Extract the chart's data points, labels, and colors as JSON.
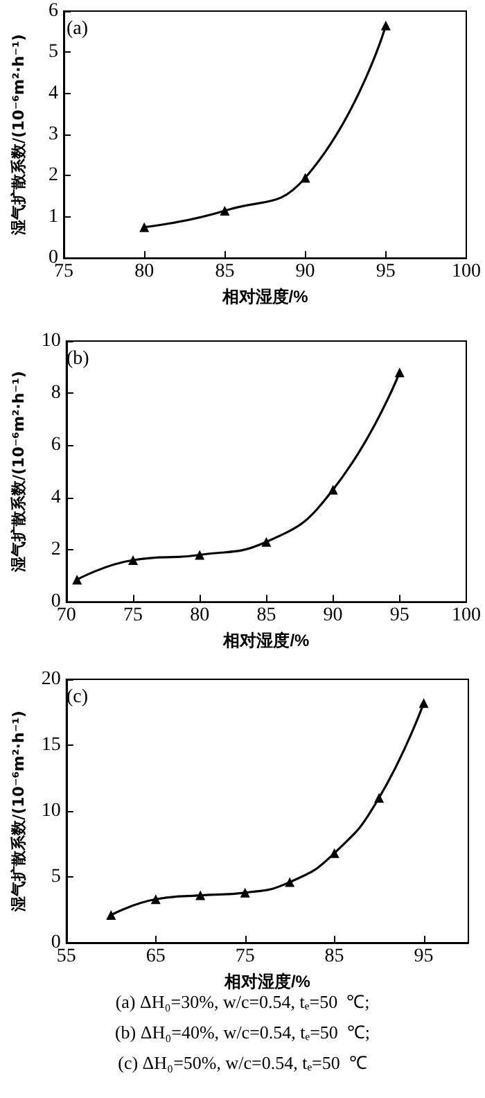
{
  "chart_data": [
    {
      "type": "line",
      "xlabel": "相对湿度/%",
      "ylabel": "湿气扩散系数/(10⁻⁶m²·h⁻¹)",
      "annotations": [
        "(a)"
      ],
      "series": [
        {
          "color": "#000000",
          "x": [
            80,
            85,
            90,
            95
          ],
          "values": [
            0.75,
            1.15,
            1.95,
            5.65
          ]
        }
      ],
      "xlim": [
        75,
        100
      ],
      "xticks": [
        75,
        80,
        85,
        90,
        95,
        100
      ],
      "ylim": [
        0,
        6
      ],
      "yticks": [
        0,
        1,
        2,
        3,
        4,
        5,
        6
      ],
      "grid": false,
      "marker": "triangle",
      "line_style": "solid"
    },
    {
      "type": "line",
      "xlabel": "相对湿度/%",
      "ylabel": "湿气扩散系数/(10⁻⁶m²·h⁻¹)",
      "annotations": [
        "(b)"
      ],
      "series": [
        {
          "color": "#000000",
          "x": [
            70.8,
            75,
            80,
            85,
            90,
            95
          ],
          "values": [
            0.85,
            1.6,
            1.8,
            2.3,
            4.3,
            8.8
          ]
        }
      ],
      "xlim": [
        70,
        100
      ],
      "xticks": [
        70,
        75,
        80,
        85,
        90,
        95,
        100
      ],
      "ylim": [
        0,
        10
      ],
      "yticks": [
        0,
        2,
        4,
        6,
        8,
        10
      ],
      "grid": false,
      "marker": "triangle",
      "line_style": "solid"
    },
    {
      "type": "line",
      "xlabel": "相对湿度/%",
      "ylabel": "湿气扩散系数/(10⁻⁶m²·h⁻¹)",
      "annotations": [
        "(c)",
        "(a) ΔH₀=30%, w/c=0.54, tₑ=50  ℃;",
        "(b) ΔH₀=40%, w/c=0.54, tₑ=50  ℃;",
        "(c) ΔH₀=50%, w/c=0.54, tₑ=50  ℃"
      ],
      "series": [
        {
          "color": "#000000",
          "x": [
            60,
            65,
            70,
            75,
            80,
            85,
            90,
            95
          ],
          "values": [
            2.1,
            3.3,
            3.6,
            3.8,
            4.6,
            6.8,
            11.0,
            18.2
          ]
        }
      ],
      "xlim": [
        55,
        100
      ],
      "xticks": [
        55,
        65,
        75,
        85,
        95
      ],
      "ylim": [
        0,
        20
      ],
      "yticks": [
        0,
        5,
        10,
        15,
        20
      ],
      "grid": false,
      "marker": "triangle",
      "line_style": "solid"
    }
  ]
}
